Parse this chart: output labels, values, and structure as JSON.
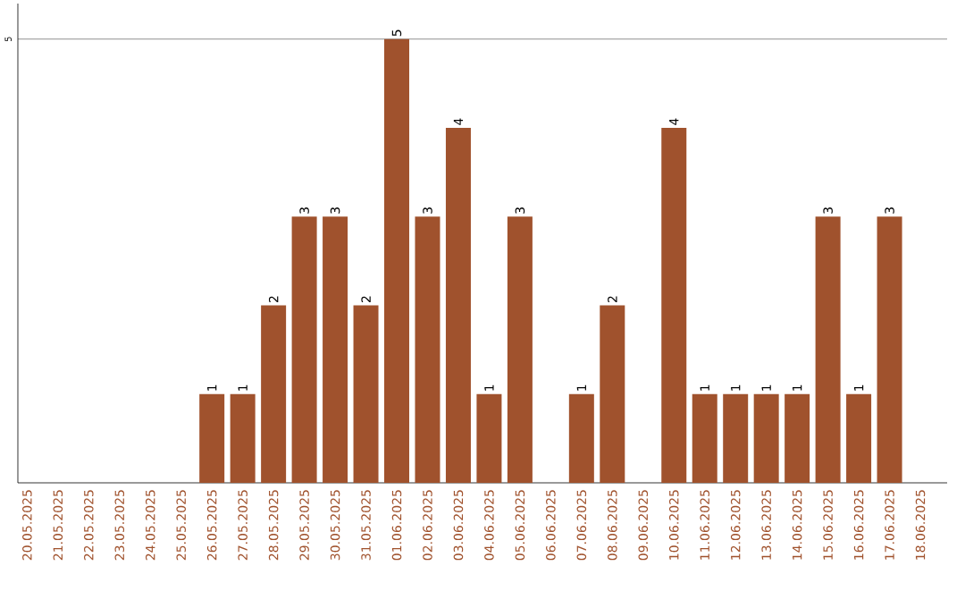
{
  "chart_data": {
    "type": "bar",
    "categories": [
      "20.05.2025",
      "21.05.2025",
      "22.05.2025",
      "23.05.2025",
      "24.05.2025",
      "25.05.2025",
      "26.05.2025",
      "27.05.2025",
      "28.05.2025",
      "29.05.2025",
      "30.05.2025",
      "31.05.2025",
      "01.06.2025",
      "02.06.2025",
      "03.06.2025",
      "04.06.2025",
      "05.06.2025",
      "06.06.2025",
      "07.06.2025",
      "08.06.2025",
      "09.06.2025",
      "10.06.2025",
      "11.06.2025",
      "12.06.2025",
      "13.06.2025",
      "14.06.2025",
      "15.06.2025",
      "16.06.2025",
      "17.06.2025",
      "18.06.2025"
    ],
    "values": [
      0,
      0,
      0,
      0,
      0,
      0,
      1,
      1,
      2,
      3,
      3,
      2,
      5,
      3,
      4,
      1,
      3,
      0,
      1,
      2,
      0,
      4,
      1,
      1,
      1,
      1,
      3,
      1,
      3,
      0
    ],
    "value_labels": [
      null,
      null,
      null,
      null,
      null,
      null,
      "1",
      "1",
      "2",
      "3",
      "3",
      "2",
      "5",
      "3",
      "4",
      "1",
      "3",
      null,
      "1",
      "2",
      null,
      "4",
      "1",
      "1",
      "1",
      "1",
      "3",
      "1",
      "3",
      null
    ],
    "color": "#a0522d",
    "ylim": [
      0,
      5.4
    ],
    "yticks": [
      5
    ],
    "grid": "y"
  }
}
